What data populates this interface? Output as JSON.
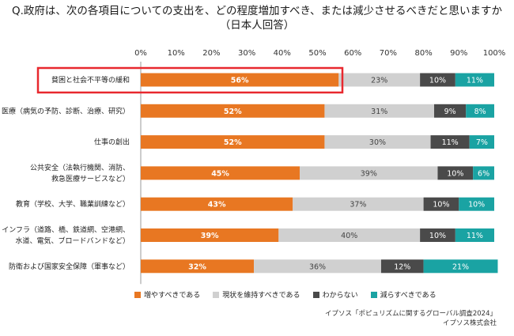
{
  "title_line1": "Q.政府は、次の各項目についての支出を、どの程度増加すべき、または減少させるべきだと思いますか",
  "title_line2": "（日本人回答）",
  "colors": {
    "increase": "#e87722",
    "maintain": "#d0d0d0",
    "unknown": "#4a4a4a",
    "decrease": "#1aa3a3",
    "highlight": "#e8282e"
  },
  "chart_data": {
    "type": "bar",
    "orientation": "horizontal",
    "stacked": true,
    "xlim": [
      0,
      100
    ],
    "ticks": [
      "0%",
      "10%",
      "20%",
      "30%",
      "40%",
      "50%",
      "60%",
      "70%",
      "80%",
      "90%",
      "100%"
    ],
    "categories": [
      [
        "貧困と社会不平等の緩和"
      ],
      [
        "医療（病気の予防、診断、治療、研究）"
      ],
      [
        "仕事の創出"
      ],
      [
        "公共安全（法執行機関、消防、",
        "救急医療サービスなど）"
      ],
      [
        "教育（学校、大学、職業訓練など）"
      ],
      [
        "インフラ（道路、橋、鉄道網、空港網、",
        "水道、電気、ブロードバンドなど）"
      ],
      [
        "防衛および国家安全保障（軍事など）"
      ]
    ],
    "highlighted_category_index": 0,
    "series": [
      {
        "name": "増やすべきである",
        "values": [
          56,
          52,
          52,
          45,
          43,
          39,
          32
        ]
      },
      {
        "name": "現状を維持すべきである",
        "values": [
          23,
          31,
          30,
          39,
          37,
          40,
          36
        ]
      },
      {
        "name": "わからない",
        "values": [
          10,
          9,
          11,
          10,
          10,
          10,
          12
        ]
      },
      {
        "name": "減らすべきである",
        "values": [
          11,
          8,
          7,
          6,
          10,
          11,
          21
        ]
      }
    ],
    "data_labels": [
      [
        "56%",
        "23%",
        "10%",
        "11%"
      ],
      [
        "52%",
        "31%",
        "9%",
        "8%"
      ],
      [
        "52%",
        "30%",
        "11%",
        "7%"
      ],
      [
        "45%",
        "39%",
        "10%",
        "6%"
      ],
      [
        "43%",
        "37%",
        "10%",
        "10%"
      ],
      [
        "39%",
        "40%",
        "10%",
        "11%"
      ],
      [
        "32%",
        "36%",
        "12%",
        "21%"
      ]
    ],
    "legend_position": "bottom"
  },
  "source_line1": "イプソス「ポピュリズムに関するグローバル調査2024」",
  "source_line2": "イプソス株式会社"
}
